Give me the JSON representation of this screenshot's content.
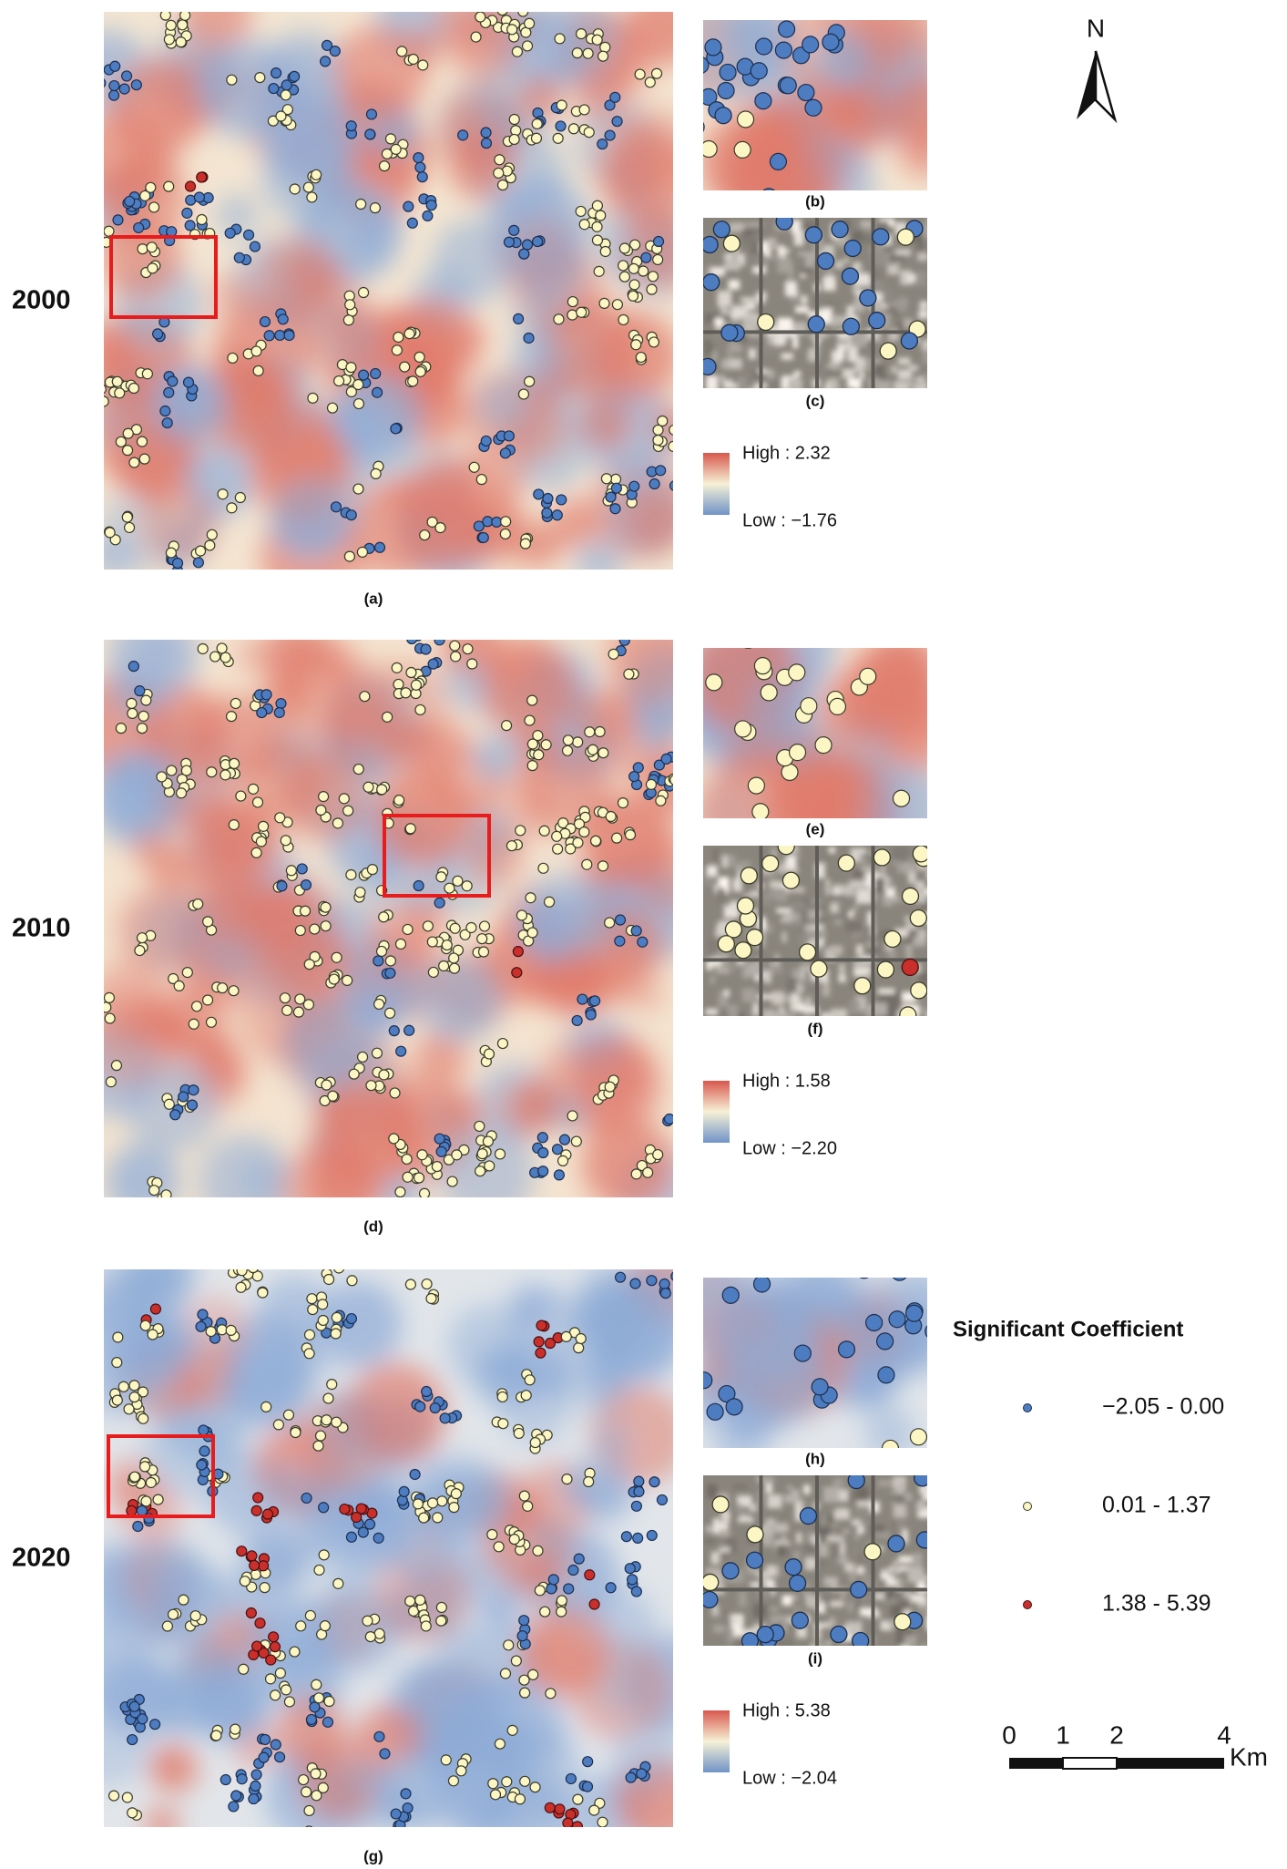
{
  "panels": [
    {
      "year": "2000",
      "map_label": "(a)",
      "zoom_label": "(b)",
      "image_label": "(c)",
      "legend_high": "High : 2.32",
      "legend_low": "Low : −1.76"
    },
    {
      "year": "2010",
      "map_label": "(d)",
      "zoom_label": "(e)",
      "image_label": "(f)",
      "legend_high": "High : 1.58",
      "legend_low": "Low : −2.20"
    },
    {
      "year": "2020",
      "map_label": "(g)",
      "zoom_label": "(h)",
      "image_label": "(i)",
      "legend_high": "High : 5.38",
      "legend_low": "Low : −2.04"
    }
  ],
  "legend": {
    "title": "Significant Coefficient",
    "classes": [
      "−2.05 - 0.00",
      "0.01 - 1.37",
      "1.38 - 5.39"
    ]
  },
  "north": "N",
  "scale": {
    "ticks": [
      "0",
      "1",
      "2",
      "4"
    ],
    "unit": "Km"
  }
}
